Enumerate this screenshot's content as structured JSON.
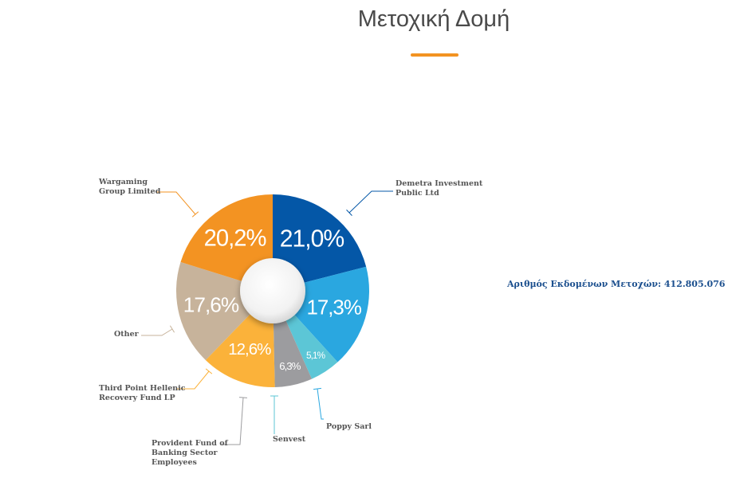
{
  "chart_data": {
    "type": "donut",
    "title": "Μετοχική Δομή",
    "categories": [
      "Demetra Investment Public Ltd",
      "Poppy Sarl",
      "Senvest",
      "Provident Fund of Banking Sector Employees",
      "Third Point Hellenic Recovery Fund LP",
      "Other",
      "Wargaming Group Limited"
    ],
    "values": [
      21.0,
      17.3,
      5.1,
      6.3,
      12.6,
      17.6,
      20.2
    ],
    "value_labels": [
      "21,0%",
      "17,3%",
      "5,1%",
      "6,3%",
      "12,6%",
      "17,6%",
      "20,2%"
    ],
    "colors": [
      "#0457a7",
      "#2aa7e0",
      "#5cc6d6",
      "#9c9c9f",
      "#fbb23a",
      "#c7b39b",
      "#f39322"
    ],
    "note": "Αριθμός Εκδομένων Μετοχών: 412.805.076"
  }
}
